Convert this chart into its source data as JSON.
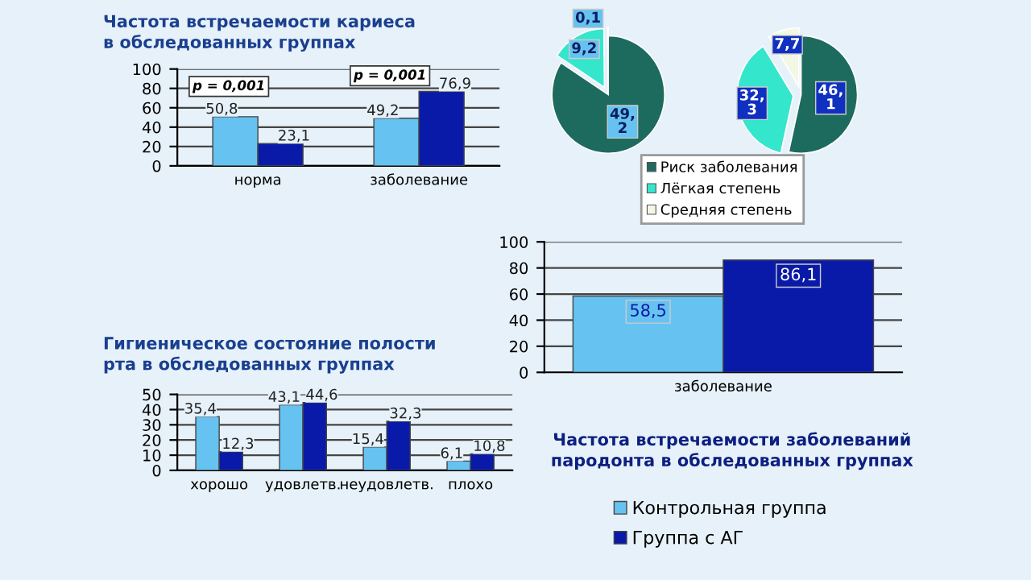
{
  "chart_data": [
    {
      "type": "bar",
      "title": "Частота встречаемости кариеса\nв обследованных группах",
      "categories": [
        "норма",
        "заболевание"
      ],
      "series": [
        {
          "color": "#66c2f0",
          "values": [
            50.8,
            49.2
          ],
          "value_labels": [
            "50,8",
            "49,2"
          ]
        },
        {
          "color": "#0a1aa8",
          "values": [
            23.1,
            76.9
          ],
          "value_labels": [
            "23,1",
            "76,9"
          ]
        }
      ],
      "ylim": [
        0,
        100
      ],
      "yticks": [
        0,
        20,
        40,
        60,
        80,
        100
      ],
      "grid": "y",
      "annotations": [
        "p = 0,001",
        "p = 0,001"
      ]
    },
    {
      "type": "pie",
      "categories": [
        "Риск заболевания",
        "Лёгкая степень",
        "Средняя степень"
      ],
      "values": [
        49.2,
        9.2,
        0.1
      ],
      "value_labels": [
        "49,\n2",
        "9,2",
        "0,1"
      ],
      "colors": [
        "#1d6b5f",
        "#33e6cc",
        "#f2f8e4"
      ],
      "legend": "bottom right"
    },
    {
      "type": "pie",
      "categories": [
        null,
        null,
        null
      ],
      "values": [
        46.1,
        32.3,
        7.7
      ],
      "value_labels": [
        "46,\n1",
        "32,\n3",
        "7,7"
      ],
      "colors": [
        "#1d6b5f",
        "#33e6cc",
        "#f2f8e4"
      ]
    },
    {
      "type": "bar",
      "title": "Частота встречаемости заболеваний\nпародонта в обследованных группах",
      "categories": [
        "заболевание"
      ],
      "series": [
        {
          "name": "Контрольная группа",
          "color": "#66c2f0",
          "values": [
            58.5
          ],
          "value_labels": [
            "58,5"
          ]
        },
        {
          "name": "Группа с АГ",
          "color": "#0a1aa8",
          "values": [
            86.1
          ],
          "value_labels": [
            "86,1"
          ]
        }
      ],
      "ylim": [
        0,
        100
      ],
      "yticks": [
        0,
        20,
        40,
        60,
        80,
        100
      ],
      "grid": "y",
      "legend": "bottom"
    },
    {
      "type": "bar",
      "title": "Гигиеническое состояние полости\nрта в обследованных группах",
      "categories": [
        "хорошо",
        "удовлетв.",
        "неудовлетв.",
        "плохо"
      ],
      "series": [
        {
          "color": "#66c2f0",
          "values": [
            35.4,
            43.1,
            15.4,
            6.1
          ],
          "value_labels": [
            "35,4",
            "43,1",
            "15,4",
            "6,1"
          ]
        },
        {
          "color": "#0a1aa8",
          "values": [
            12.3,
            44.6,
            32.3,
            10.8
          ],
          "value_labels": [
            "12,3",
            "44,6",
            "32,3",
            "10,8"
          ]
        }
      ],
      "ylim": [
        0,
        50
      ],
      "yticks": [
        0,
        10,
        20,
        30,
        40,
        50
      ],
      "grid": "y"
    }
  ]
}
